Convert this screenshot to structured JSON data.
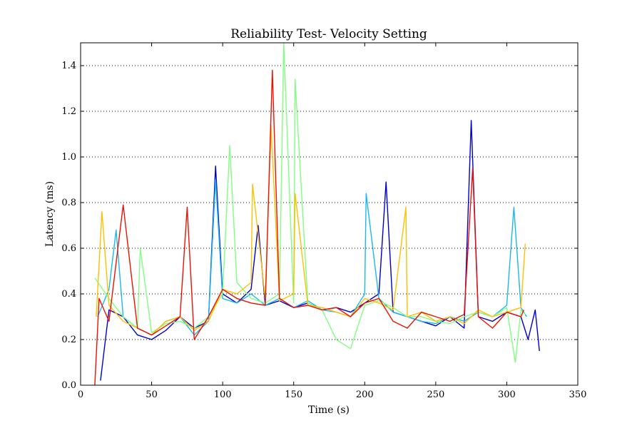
{
  "chart_data": {
    "type": "line",
    "title": "Reliability Test- Velocity Setting",
    "xlabel": "Time (s)",
    "ylabel": "Latency (ms)",
    "xlim": [
      0,
      350
    ],
    "ylim": [
      0,
      1.5
    ],
    "xticks": [
      0,
      50,
      100,
      150,
      200,
      250,
      300,
      350
    ],
    "yticks": [
      0.0,
      0.2,
      0.4,
      0.6,
      0.8,
      1.0,
      1.2,
      1.4
    ],
    "xtick_labels": [
      "0",
      "50",
      "100",
      "150",
      "200",
      "250",
      "300",
      "350"
    ],
    "ytick_labels": [
      "0.0",
      "0.2",
      "0.4",
      "0.6",
      "0.8",
      "1.0",
      "1.2",
      "1.4"
    ],
    "grid": "y-dotted",
    "legend": "none",
    "series": [
      {
        "color": "#0000cc",
        "x": [
          14,
          20,
          30,
          40,
          50,
          60,
          70,
          80,
          90,
          95,
          100,
          110,
          120,
          125,
          130,
          140,
          150,
          160,
          170,
          180,
          190,
          200,
          210,
          215,
          220,
          230,
          240,
          250,
          260,
          270,
          275,
          280,
          290,
          300,
          310,
          315,
          320,
          323
        ],
        "y": [
          0.02,
          0.33,
          0.3,
          0.22,
          0.2,
          0.24,
          0.3,
          0.25,
          0.28,
          0.96,
          0.4,
          0.36,
          0.42,
          0.7,
          0.35,
          0.37,
          0.34,
          0.36,
          0.33,
          0.34,
          0.32,
          0.36,
          0.4,
          0.89,
          0.32,
          0.3,
          0.28,
          0.26,
          0.3,
          0.25,
          1.16,
          0.3,
          0.28,
          0.32,
          0.3,
          0.2,
          0.33,
          0.15
        ]
      },
      {
        "color": "#1ab8f0",
        "x": [
          12,
          20,
          25,
          30,
          40,
          50,
          60,
          70,
          80,
          90,
          95,
          100,
          110,
          120,
          130,
          140,
          150,
          160,
          170,
          180,
          190,
          200,
          201,
          210,
          220,
          230,
          240,
          250,
          260,
          270,
          280,
          290,
          300,
          305,
          310,
          314
        ],
        "y": [
          0.3,
          0.42,
          0.68,
          0.3,
          0.25,
          0.22,
          0.28,
          0.3,
          0.22,
          0.28,
          0.9,
          0.38,
          0.36,
          0.4,
          0.35,
          0.38,
          0.34,
          0.37,
          0.33,
          0.32,
          0.3,
          0.4,
          0.84,
          0.38,
          0.32,
          0.3,
          0.28,
          0.27,
          0.3,
          0.28,
          0.32,
          0.3,
          0.35,
          0.78,
          0.34,
          0.3
        ]
      },
      {
        "color": "#80ff80",
        "x": [
          10,
          20,
          30,
          40,
          42,
          50,
          60,
          70,
          80,
          90,
          100,
          105,
          110,
          120,
          130,
          140,
          143,
          150,
          151,
          160,
          170,
          180,
          190,
          200,
          210,
          220,
          230,
          240,
          250,
          260,
          270,
          280,
          290,
          300,
          306,
          310,
          313
        ],
        "y": [
          0.47,
          0.38,
          0.3,
          0.25,
          0.6,
          0.23,
          0.27,
          0.28,
          0.25,
          0.3,
          0.4,
          1.05,
          0.45,
          0.38,
          0.36,
          0.4,
          1.5,
          0.36,
          1.34,
          0.36,
          0.33,
          0.2,
          0.16,
          0.35,
          0.37,
          0.34,
          0.3,
          0.3,
          0.28,
          0.27,
          0.3,
          0.32,
          0.3,
          0.34,
          0.1,
          0.33,
          0.31
        ]
      },
      {
        "color": "#ffc000",
        "x": [
          11,
          15,
          20,
          30,
          40,
          50,
          60,
          70,
          80,
          90,
          100,
          110,
          120,
          121,
          130,
          134,
          140,
          150,
          151,
          160,
          170,
          180,
          190,
          200,
          210,
          220,
          229,
          230,
          240,
          250,
          260,
          270,
          280,
          290,
          300,
          310,
          313
        ],
        "y": [
          0.3,
          0.76,
          0.35,
          0.28,
          0.25,
          0.22,
          0.28,
          0.3,
          0.24,
          0.28,
          0.42,
          0.4,
          0.45,
          0.88,
          0.38,
          1.14,
          0.37,
          0.4,
          0.84,
          0.35,
          0.34,
          0.32,
          0.3,
          0.38,
          0.36,
          0.33,
          0.78,
          0.3,
          0.32,
          0.28,
          0.3,
          0.27,
          0.33,
          0.3,
          0.32,
          0.34,
          0.62
        ]
      },
      {
        "color": "#ee1100",
        "x": [
          10,
          13,
          20,
          30,
          40,
          50,
          60,
          70,
          75,
          80,
          90,
          100,
          110,
          120,
          130,
          135,
          140,
          150,
          160,
          170,
          180,
          190,
          200,
          210,
          220,
          230,
          240,
          250,
          260,
          270,
          276,
          280,
          290,
          300,
          310,
          312
        ],
        "y": [
          0.0,
          0.38,
          0.28,
          0.79,
          0.25,
          0.22,
          0.26,
          0.3,
          0.78,
          0.2,
          0.3,
          0.42,
          0.38,
          0.36,
          0.35,
          1.38,
          0.38,
          0.34,
          0.35,
          0.33,
          0.34,
          0.3,
          0.36,
          0.38,
          0.28,
          0.25,
          0.32,
          0.3,
          0.28,
          0.31,
          0.95,
          0.3,
          0.25,
          0.32,
          0.3,
          0.33
        ]
      }
    ]
  }
}
